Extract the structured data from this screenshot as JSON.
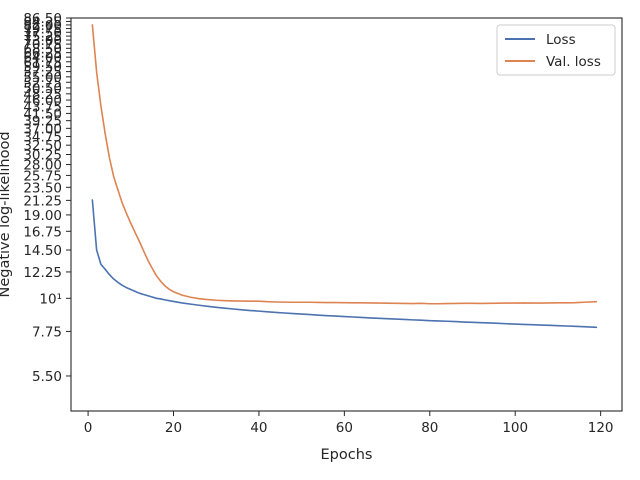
{
  "chart_data": {
    "type": "line",
    "xlabel": "Epochs",
    "ylabel": "Negative log-likelihood",
    "xlim": [
      -4,
      125
    ],
    "ylim": [
      4.2,
      86.5
    ],
    "yscale": "log",
    "grid": false,
    "legend_position": "top-right",
    "x_ticks": [
      0,
      20,
      40,
      60,
      80,
      100,
      120
    ],
    "y_ticks": [
      {
        "value": 5.5,
        "label": "5.50"
      },
      {
        "value": 7.75,
        "label": "7.75"
      },
      {
        "value": 10,
        "label": "10¹"
      },
      {
        "value": 12.25,
        "label": "12.25"
      },
      {
        "value": 14.5,
        "label": "14.50"
      },
      {
        "value": 16.75,
        "label": "16.75"
      },
      {
        "value": 19.0,
        "label": "19.00"
      },
      {
        "value": 21.25,
        "label": "21.25"
      },
      {
        "value": 23.5,
        "label": "23.50"
      },
      {
        "value": 25.75,
        "label": "25.75"
      },
      {
        "value": 28.0,
        "label": "28.00"
      },
      {
        "value": 30.25,
        "label": "30.25"
      },
      {
        "value": 32.5,
        "label": "32.50"
      },
      {
        "value": 34.75,
        "label": "34.75"
      },
      {
        "value": 37.0,
        "label": "37.00"
      },
      {
        "value": 39.25,
        "label": "39.25"
      },
      {
        "value": 41.5,
        "label": "41.50"
      },
      {
        "value": 43.75,
        "label": "43.75"
      },
      {
        "value": 46.0,
        "label": "46.00"
      },
      {
        "value": 48.25,
        "label": "48.25"
      },
      {
        "value": 50.5,
        "label": "50.50"
      },
      {
        "value": 52.75,
        "label": "52.75"
      },
      {
        "value": 55.0,
        "label": "55.00"
      },
      {
        "value": 57.25,
        "label": "57.25"
      },
      {
        "value": 59.5,
        "label": "59.50"
      },
      {
        "value": 61.75,
        "label": "61.75"
      },
      {
        "value": 64.0,
        "label": "64.00"
      },
      {
        "value": 66.25,
        "label": "66.25"
      },
      {
        "value": 68.5,
        "label": "68.50"
      },
      {
        "value": 70.75,
        "label": "70.75"
      },
      {
        "value": 73.0,
        "label": "73.00"
      },
      {
        "value": 75.25,
        "label": "75.25"
      },
      {
        "value": 77.5,
        "label": "77.50"
      },
      {
        "value": 79.75,
        "label": "79.75"
      },
      {
        "value": 82.0,
        "label": "82.00"
      },
      {
        "value": 84.25,
        "label": "84.25"
      },
      {
        "value": 86.5,
        "label": "86.50"
      }
    ],
    "series": [
      {
        "name": "Loss",
        "color": "#4c72b0",
        "x": [
          1,
          2,
          3,
          4,
          5,
          6,
          7,
          8,
          9,
          10,
          11,
          12,
          13,
          14,
          15,
          16,
          17,
          18,
          19,
          20,
          22,
          24,
          26,
          28,
          30,
          32,
          34,
          36,
          38,
          40,
          42,
          44,
          46,
          48,
          50,
          52,
          54,
          56,
          58,
          60,
          62,
          64,
          66,
          68,
          70,
          72,
          74,
          76,
          78,
          80,
          82,
          84,
          86,
          88,
          90,
          92,
          94,
          96,
          98,
          100,
          102,
          104,
          106,
          108,
          110,
          112,
          114,
          116,
          119
        ],
        "values": [
          21.3,
          14.5,
          13.0,
          12.5,
          12.0,
          11.6,
          11.3,
          11.05,
          10.85,
          10.7,
          10.55,
          10.4,
          10.3,
          10.2,
          10.1,
          10.0,
          9.95,
          9.88,
          9.82,
          9.76,
          9.65,
          9.56,
          9.48,
          9.4,
          9.33,
          9.27,
          9.21,
          9.15,
          9.1,
          9.06,
          9.01,
          8.97,
          8.93,
          8.89,
          8.86,
          8.82,
          8.78,
          8.75,
          8.72,
          8.69,
          8.66,
          8.63,
          8.6,
          8.57,
          8.55,
          8.52,
          8.5,
          8.47,
          8.45,
          8.42,
          8.4,
          8.38,
          8.36,
          8.33,
          8.31,
          8.29,
          8.27,
          8.25,
          8.22,
          8.2,
          8.18,
          8.16,
          8.14,
          8.12,
          8.1,
          8.08,
          8.06,
          8.04,
          8.0
        ]
      },
      {
        "name": "Val. loss",
        "color": "#dd8452",
        "x": [
          1,
          2,
          3,
          4,
          5,
          6,
          7,
          8,
          9,
          10,
          11,
          12,
          13,
          14,
          15,
          16,
          17,
          18,
          19,
          20,
          22,
          24,
          26,
          28,
          30,
          32,
          34,
          36,
          38,
          40,
          42,
          44,
          46,
          48,
          50,
          52,
          54,
          56,
          58,
          60,
          62,
          64,
          66,
          68,
          70,
          72,
          74,
          76,
          78,
          80,
          82,
          84,
          86,
          88,
          90,
          92,
          94,
          96,
          98,
          100,
          102,
          104,
          106,
          108,
          110,
          112,
          114,
          116,
          119
        ],
        "values": [
          82.0,
          57.0,
          44.0,
          35.5,
          29.5,
          25.5,
          23.0,
          20.8,
          19.2,
          17.8,
          16.6,
          15.5,
          14.4,
          13.4,
          12.6,
          11.9,
          11.4,
          11.0,
          10.72,
          10.52,
          10.25,
          10.08,
          9.97,
          9.9,
          9.85,
          9.82,
          9.8,
          9.79,
          9.78,
          9.78,
          9.74,
          9.72,
          9.71,
          9.7,
          9.7,
          9.7,
          9.69,
          9.68,
          9.68,
          9.67,
          9.66,
          9.66,
          9.65,
          9.64,
          9.63,
          9.62,
          9.61,
          9.6,
          9.62,
          9.59,
          9.59,
          9.6,
          9.61,
          9.62,
          9.62,
          9.61,
          9.62,
          9.63,
          9.64,
          9.64,
          9.65,
          9.64,
          9.64,
          9.65,
          9.66,
          9.66,
          9.67,
          9.7,
          9.74
        ]
      }
    ]
  }
}
